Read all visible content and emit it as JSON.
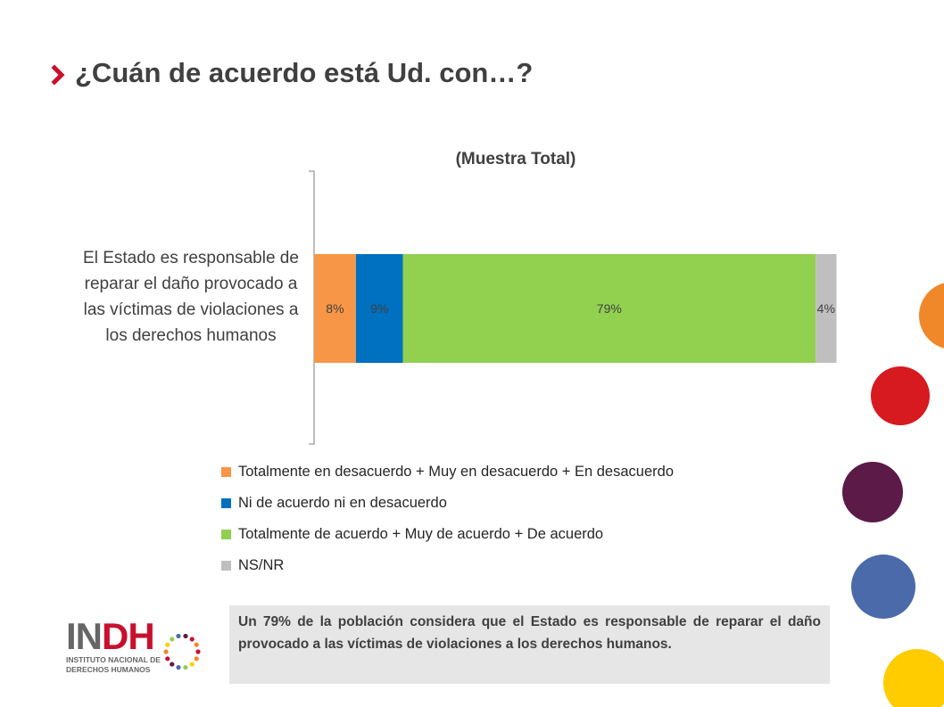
{
  "header": {
    "title": "¿Cuán de acuerdo está Ud. con…?",
    "arrow_icon": "chevron-right-icon",
    "accent_color": "#c8102e"
  },
  "chart_data": {
    "type": "bar",
    "orientation": "horizontal",
    "stacked": true,
    "title": "(Muestra Total)",
    "categories": [
      "El Estado es responsable de reparar el daño provocado a las víctimas de violaciones a los derechos humanos"
    ],
    "series": [
      {
        "name": "Totalmente en desacuerdo + Muy en desacuerdo + En desacuerdo",
        "values": [
          8
        ],
        "label": "8%",
        "color": "#f79646"
      },
      {
        "name": "Ni de acuerdo ni en desacuerdo",
        "values": [
          9
        ],
        "label": "9%",
        "color": "#0070c0"
      },
      {
        "name": "Totalmente de acuerdo + Muy de acuerdo + De acuerdo",
        "values": [
          79
        ],
        "label": "79%",
        "color": "#92d050"
      },
      {
        "name": "NS/NR",
        "values": [
          4
        ],
        "label": "4%",
        "color": "#bfbfbf"
      }
    ],
    "xlim": [
      0,
      100
    ],
    "legend_position": "bottom",
    "grid": false
  },
  "summary": {
    "text": "Un 79% de la población considera que el Estado es responsable de reparar el daño provocado a las víctimas de violaciones a los derechos humanos."
  },
  "logo": {
    "word_start": "IN",
    "word_highlight": "DH",
    "line1": "INSTITUTO NACIONAL DE",
    "line2": "DERECHOS HUMANOS"
  },
  "decorations": {
    "circle_colors": [
      "#f0882a",
      "#d71920",
      "#5b1a47",
      "#4a6aaa",
      "#ffcc00"
    ]
  }
}
